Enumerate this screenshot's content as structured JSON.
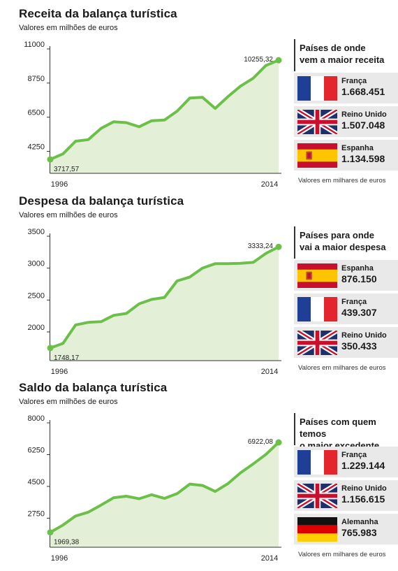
{
  "sections": [
    {
      "title": "Receita da balança turística",
      "subtitle": "Valores em milhões de euros",
      "panel_title_l1": "Países de onde",
      "panel_title_l2": "vem a maior receita",
      "countries": [
        {
          "name": "França",
          "value": "1.668.451",
          "flag": "france-flag"
        },
        {
          "name": "Reino Unido",
          "value": "1.507.048",
          "flag": "uk-flag"
        },
        {
          "name": "Espanha",
          "value": "1.134.598",
          "flag": "spain-flag"
        }
      ],
      "note": "Valores em milhares de euros"
    },
    {
      "title": "Despesa da balança turística",
      "subtitle": "Valores em milhões de euros",
      "panel_title_l1": "Países para onde",
      "panel_title_l2": "vai a maior despesa",
      "countries": [
        {
          "name": "Espanha",
          "value": "876.150",
          "flag": "spain-flag"
        },
        {
          "name": "França",
          "value": "439.307",
          "flag": "france-flag"
        },
        {
          "name": "Reino Unido",
          "value": "350.433",
          "flag": "uk-flag"
        }
      ],
      "note": "Valores em milhares de euros"
    },
    {
      "title": "Saldo da balança turística",
      "subtitle": "Valores em milhões de euros",
      "panel_title_l1": "Países com quem temos",
      "panel_title_l2": "o maior excedente",
      "countries": [
        {
          "name": "França",
          "value": "1.229.144",
          "flag": "france-flag"
        },
        {
          "name": "Reino Unido",
          "value": "1.156.615",
          "flag": "uk-flag"
        },
        {
          "name": "Alemanha",
          "value": "765.983",
          "flag": "germany-flag"
        }
      ],
      "note": "Valores em milhares de euros"
    }
  ],
  "colors": {
    "line": "#6cc04a",
    "fill": "#e3f0d7",
    "axis": "#333333"
  },
  "chart_data": [
    {
      "type": "area",
      "title": "Receita da balança turística",
      "ylabel": "Valores em milhões de euros",
      "x_labels": [
        "1996",
        "2014"
      ],
      "yticks": [
        4250,
        6500,
        8750,
        11000
      ],
      "ylim": [
        2800,
        11000
      ],
      "grid": false,
      "x": [
        1996,
        1997,
        1998,
        1999,
        2000,
        2001,
        2002,
        2003,
        2004,
        2005,
        2006,
        2007,
        2008,
        2009,
        2010,
        2011,
        2012,
        2013,
        2014
      ],
      "values": [
        3717.57,
        4080,
        4920,
        5020,
        5760,
        6200,
        6140,
        5870,
        6270,
        6310,
        6900,
        7760,
        7810,
        7080,
        7850,
        8550,
        9070,
        9910,
        10255.32
      ],
      "annotations": [
        {
          "x": 1996,
          "text": "3717,57"
        },
        {
          "x": 2014,
          "text": "10255,32"
        }
      ]
    },
    {
      "type": "area",
      "title": "Despesa da balança turística",
      "ylabel": "Valores em milhões de euros",
      "x_labels": [
        "1996",
        "2014"
      ],
      "yticks": [
        2000,
        2500,
        3000,
        3500
      ],
      "ylim": [
        1550,
        3500
      ],
      "grid": false,
      "x": [
        1996,
        1997,
        1998,
        1999,
        2000,
        2001,
        2002,
        2003,
        2004,
        2005,
        2006,
        2007,
        2008,
        2009,
        2010,
        2011,
        2012,
        2013,
        2014
      ],
      "values": [
        1748.17,
        1820,
        2110,
        2150,
        2160,
        2260,
        2290,
        2440,
        2510,
        2540,
        2800,
        2860,
        3000,
        3070,
        3070,
        3075,
        3090,
        3230,
        3333.24
      ],
      "annotations": [
        {
          "x": 1996,
          "text": "1748,17"
        },
        {
          "x": 2014,
          "text": "3333,24"
        }
      ]
    },
    {
      "type": "area",
      "title": "Saldo da balança turística",
      "ylabel": "Valores em milhões de euros",
      "x_labels": [
        "1996",
        "2014"
      ],
      "yticks": [
        2750,
        4500,
        6250,
        8000
      ],
      "ylim": [
        1150,
        8000
      ],
      "grid": false,
      "x": [
        1996,
        1997,
        1998,
        1999,
        2000,
        2001,
        2002,
        2003,
        2004,
        2005,
        2006,
        2007,
        2008,
        2009,
        2010,
        2011,
        2012,
        2013,
        2014
      ],
      "values": [
        1969.38,
        2370,
        2870,
        3080,
        3470,
        3880,
        3960,
        3820,
        4040,
        3840,
        4100,
        4630,
        4550,
        4220,
        4650,
        5250,
        5740,
        6260,
        6922.08
      ],
      "annotations": [
        {
          "x": 1996,
          "text": "1969,38"
        },
        {
          "x": 2014,
          "text": "6922,08"
        }
      ]
    }
  ]
}
